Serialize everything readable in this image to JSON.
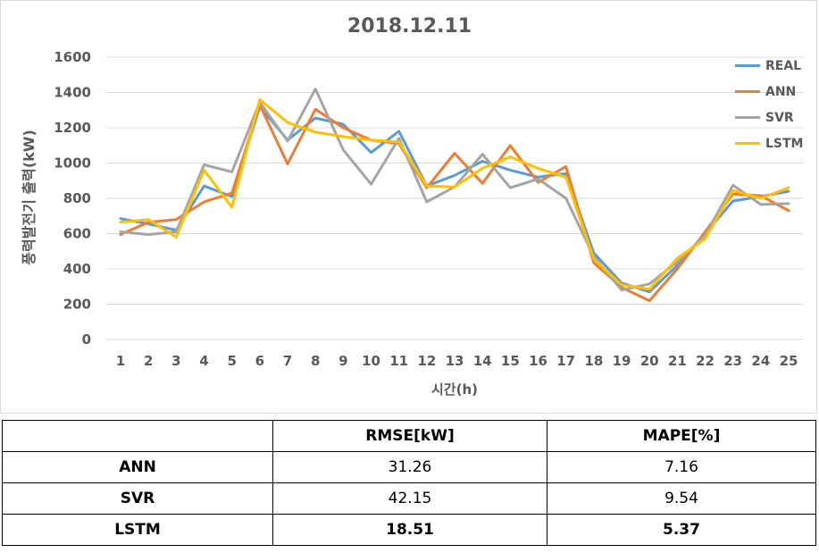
{
  "chart_data": {
    "type": "line",
    "title": "2018.12.11",
    "xlabel": "시간(h)",
    "ylabel": "풍력발전기 출력(kW)",
    "ylim": [
      0,
      1600
    ],
    "yticks": [
      0,
      200,
      400,
      600,
      800,
      1000,
      1200,
      1400,
      1600
    ],
    "x": [
      1,
      2,
      3,
      4,
      5,
      6,
      7,
      8,
      9,
      10,
      11,
      12,
      13,
      14,
      15,
      16,
      17,
      18,
      19,
      20,
      21,
      22,
      23,
      24,
      25
    ],
    "grid": true,
    "legend_position": "top-right",
    "series": [
      {
        "name": "REAL",
        "color": "#5b9bd5",
        "values": [
          685,
          655,
          620,
          870,
          810,
          1320,
          1130,
          1255,
          1220,
          1060,
          1180,
          870,
          930,
          1010,
          960,
          920,
          940,
          490,
          320,
          270,
          420,
          600,
          785,
          810,
          840
        ]
      },
      {
        "name": "ANN",
        "color": "#ed7d31",
        "values": [
          595,
          665,
          680,
          780,
          830,
          1330,
          995,
          1305,
          1200,
          1130,
          1110,
          860,
          1055,
          885,
          1100,
          890,
          980,
          435,
          295,
          220,
          400,
          610,
          825,
          815,
          730
        ]
      },
      {
        "name": "SVR",
        "color": "#a5a5a5",
        "values": [
          610,
          595,
          610,
          990,
          950,
          1345,
          1125,
          1420,
          1075,
          880,
          1140,
          780,
          865,
          1050,
          860,
          910,
          800,
          470,
          280,
          315,
          440,
          590,
          875,
          765,
          770
        ]
      },
      {
        "name": "LSTM",
        "color": "#ffc000",
        "values": [
          665,
          680,
          580,
          960,
          750,
          1360,
          1230,
          1175,
          1150,
          1130,
          1120,
          870,
          865,
          970,
          1035,
          970,
          920,
          455,
          310,
          285,
          460,
          570,
          845,
          800,
          860
        ]
      }
    ]
  },
  "table": {
    "headers": [
      "",
      "RMSE[kW]",
      "MAPE[%]"
    ],
    "rows": [
      {
        "model": "ANN",
        "rmse": "31.26",
        "mape": "7.16"
      },
      {
        "model": "SVR",
        "rmse": "42.15",
        "mape": "9.54"
      },
      {
        "model": "LSTM",
        "rmse": "18.51",
        "mape": "5.37"
      }
    ]
  }
}
